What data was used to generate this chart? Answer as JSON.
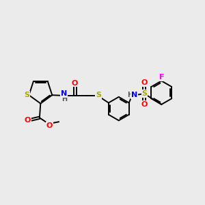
{
  "background_color": "#EBEBEB",
  "figure_size": [
    3.0,
    3.0
  ],
  "dpi": 100,
  "atom_colors": {
    "S": "#AAAA00",
    "O": "#FF0000",
    "N": "#0000EE",
    "F": "#FF00FF",
    "C": "#000000",
    "H": "#555555"
  },
  "bond_color": "#000000",
  "bond_width": 1.4
}
